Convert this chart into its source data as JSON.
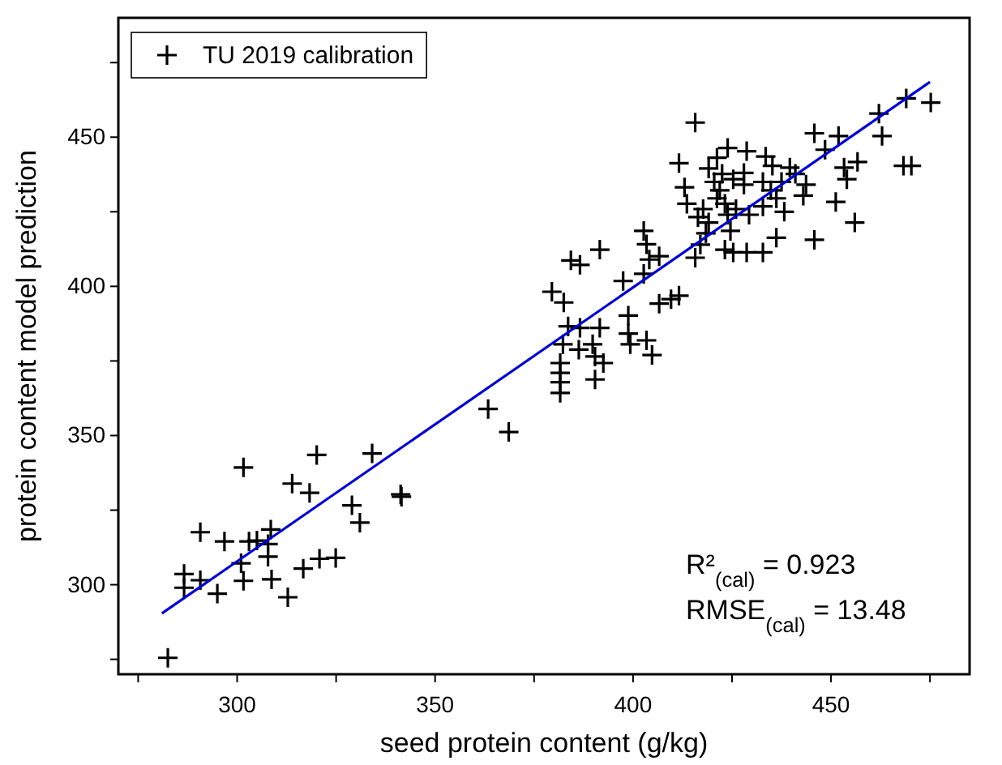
{
  "chart_data": {
    "type": "scatter",
    "xlabel": "seed protein content (g/kg)",
    "ylabel": "protein content model prediction",
    "xlim": [
      270,
      485
    ],
    "ylim": [
      270,
      490
    ],
    "xticks": [
      {
        "value": 275,
        "label": null
      },
      300,
      {
        "value": 325,
        "label": null
      },
      350,
      {
        "value": 375,
        "label": null
      },
      400,
      {
        "value": 425,
        "label": null
      },
      450,
      {
        "value": 475,
        "label": null
      }
    ],
    "yticks": [
      {
        "value": 275,
        "label": null
      },
      300,
      {
        "value": 325,
        "label": null
      },
      350,
      {
        "value": 375,
        "label": null
      },
      400,
      {
        "value": 425,
        "label": null
      },
      450,
      {
        "value": 475,
        "label": null
      }
    ],
    "grid": false,
    "legend": "top left",
    "annotations": [
      "R²$_{(cal)}$ = 0.923",
      "RMSE$_{(cal)}$ = 13.48"
    ],
    "series": [
      {
        "name": "TU 2019 calibration",
        "marker": "cross",
        "color": "#000000",
        "x": [
          282.5,
          286.6,
          286.6,
          290.7,
          290.7,
          295,
          296.8,
          301,
          301.6,
          301.6,
          303,
          305,
          308.5,
          307.8,
          307.8,
          308.7,
          312.8,
          313.9,
          316.7,
          318.3,
          320.1,
          320.8,
          324.9,
          329,
          331,
          334.1,
          341.3,
          341.5,
          363.4,
          368.6,
          381.6,
          381.6,
          381.6,
          381.6,
          382.3,
          383.6,
          379.5,
          382.5,
          384.3,
          386.6,
          391.6,
          386.6,
          391.6,
          386.3,
          389.8,
          390.4,
          392.5,
          390.4,
          397.5,
          398.8,
          398.8,
          399.3,
          403.4,
          404.8,
          402.7,
          404.1,
          406.6,
          403.4,
          402.7,
          406.6,
          409.6,
          411.6,
          415.7,
          418.4,
          423.2,
          415.7,
          411.6,
          423.9,
          428.7,
          433.5,
          435.2,
          439.6,
          445.8,
          451.9,
          448.5,
          462.1,
          469,
          475.2,
          462.9,
          456.7,
          453.3,
          454,
          468.3,
          470.3,
          443.7,
          443,
          451.2,
          456,
          445.8,
          436.2,
          432.8,
          428.7,
          425.3,
          413,
          413.6,
          419.1,
          420.5,
          421.9,
          421.2,
          423.2,
          417.7,
          423.9,
          416.4,
          419.1,
          425.3,
          428,
          428,
          422.5,
          426,
          424.6,
          432.8,
          434.8,
          437.5,
          436.2,
          438.2,
          441,
          432.8,
          429.3,
          421.2,
          417
        ],
        "values": [
          275.5,
          303.6,
          299,
          301.5,
          317.6,
          297,
          314.5,
          307.2,
          301.3,
          339.3,
          314.5,
          314.8,
          318.5,
          313.6,
          309.4,
          301.8,
          295.8,
          333.9,
          305.4,
          330.8,
          343.5,
          308.7,
          309,
          326.6,
          320.8,
          344,
          330.3,
          329.5,
          358.9,
          351.2,
          364.3,
          367.9,
          371,
          374.3,
          380.6,
          386.6,
          398.2,
          394.6,
          408.7,
          407.2,
          412.3,
          386.1,
          386.1,
          378.8,
          380.6,
          376.5,
          374.3,
          368.8,
          401.8,
          390.2,
          384.2,
          380.6,
          381.9,
          377,
          404.2,
          409,
          410.1,
          414.1,
          418.6,
          394.2,
          395.7,
          396.9,
          409.6,
          417.8,
          412.3,
          454.9,
          441.3,
          446.4,
          445.3,
          443.5,
          440.4,
          439.8,
          451.3,
          450.4,
          445.8,
          457.9,
          463,
          461.6,
          450.4,
          441.7,
          439.8,
          435.9,
          440.4,
          440.4,
          434.1,
          430.4,
          428.3,
          421.4,
          415.6,
          416.3,
          411.4,
          411.4,
          411.4,
          433.2,
          427.7,
          439.5,
          435,
          432.2,
          429.5,
          427.7,
          425.9,
          424,
          423.2,
          421.4,
          435.9,
          438,
          434.1,
          437.7,
          425.9,
          418.6,
          435,
          432.2,
          435,
          429.5,
          425,
          437.7,
          426.8,
          424,
          443.1,
          414
        ]
      },
      {
        "type": "line",
        "color": "#0000cc",
        "x": [
          281,
          475
        ],
        "values": [
          290.4,
          468.5
        ]
      }
    ]
  }
}
